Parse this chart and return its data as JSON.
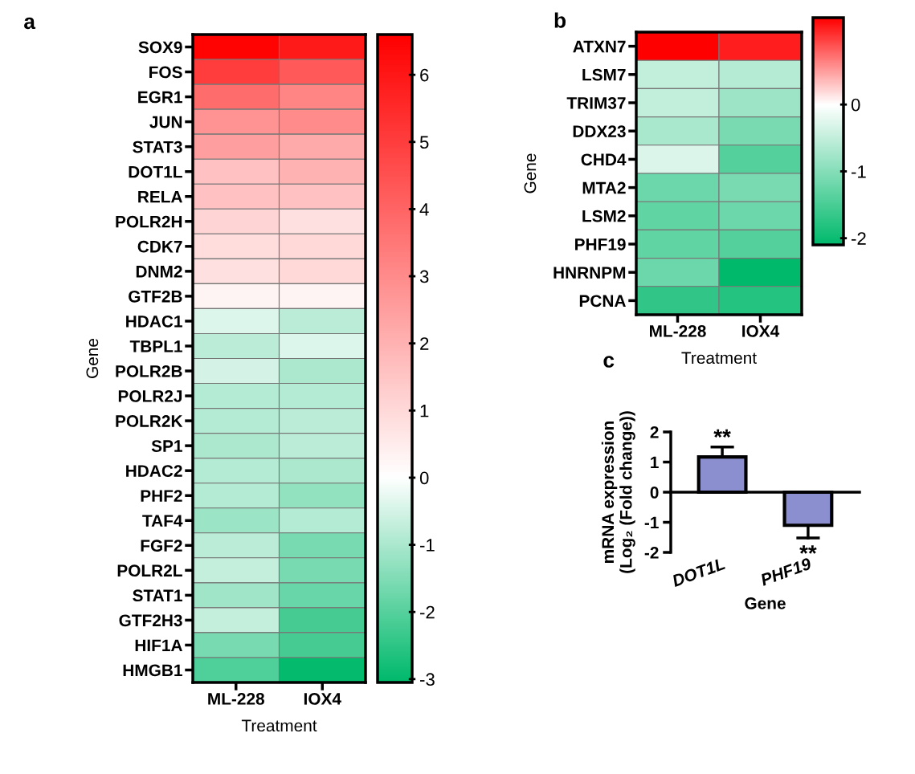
{
  "chart_data": [
    {
      "type": "heatmap",
      "title": "a",
      "xlabel": "Treatment",
      "ylabel": "Gene",
      "categories": [
        "ML-228",
        "IOX4"
      ],
      "y_categories": [
        "SOX9",
        "FOS",
        "EGR1",
        "JUN",
        "STAT3",
        "DOT1L",
        "RELA",
        "POLR2H",
        "CDK7",
        "DNM2",
        "GTF2B",
        "HDAC1",
        "TBPL1",
        "POLR2B",
        "POLR2J",
        "POLR2K",
        "SP1",
        "HDAC2",
        "PHF2",
        "TAF4",
        "FGF2",
        "POLR2L",
        "STAT1",
        "GTF2H3",
        "HIF1A",
        "HMGB1"
      ],
      "cells": [
        [
          6.5,
          5.9
        ],
        [
          5.0,
          4.3
        ],
        [
          3.8,
          3.2
        ],
        [
          2.8,
          3.0
        ],
        [
          2.5,
          2.2
        ],
        [
          1.6,
          2.0
        ],
        [
          1.6,
          1.6
        ],
        [
          1.1,
          0.8
        ],
        [
          0.9,
          1.0
        ],
        [
          0.8,
          1.0
        ],
        [
          0.3,
          0.3
        ],
        [
          -0.4,
          -0.8
        ],
        [
          -0.8,
          -0.4
        ],
        [
          -0.5,
          -1.0
        ],
        [
          -0.9,
          -0.9
        ],
        [
          -0.9,
          -0.8
        ],
        [
          -1.0,
          -0.8
        ],
        [
          -0.9,
          -1.0
        ],
        [
          -0.9,
          -1.3
        ],
        [
          -1.2,
          -0.9
        ],
        [
          -0.8,
          -1.6
        ],
        [
          -0.7,
          -1.6
        ],
        [
          -1.1,
          -1.8
        ],
        [
          -0.7,
          -2.2
        ],
        [
          -1.6,
          -2.2
        ],
        [
          -2.1,
          -3.0
        ]
      ],
      "clim": [
        -3.05,
        6.6
      ],
      "cticks": [
        -3,
        -2,
        -1,
        0,
        1,
        2,
        3,
        4,
        5,
        6
      ]
    },
    {
      "type": "heatmap",
      "title": "b",
      "xlabel": "Treatment",
      "ylabel": "Gene",
      "categories": [
        "ML-228",
        "IOX4"
      ],
      "y_categories": [
        "ATXN7",
        "LSM7",
        "TRIM37",
        "DDX23",
        "CHD4",
        "MTA2",
        "LSM2",
        "PHF19",
        "HNRNPM",
        "PCNA"
      ],
      "cells": [
        [
          1.3,
          1.15
        ],
        [
          -0.5,
          -0.6
        ],
        [
          -0.5,
          -0.8
        ],
        [
          -0.7,
          -1.1
        ],
        [
          -0.3,
          -1.4
        ],
        [
          -1.2,
          -1.1
        ],
        [
          -1.3,
          -1.2
        ],
        [
          -1.3,
          -1.4
        ],
        [
          -1.2,
          -2.1
        ],
        [
          -1.7,
          -1.8
        ]
      ],
      "clim": [
        -2.1,
        1.3
      ],
      "cticks": [
        -2,
        -1,
        0
      ]
    },
    {
      "type": "bar",
      "title": "c",
      "xlabel": "Gene",
      "ylabel": "mRNA expression\n(Log₂ (Fold change))",
      "categories": [
        "DOT1L",
        "PHF19"
      ],
      "values": [
        1.17,
        -1.1
      ],
      "errors": [
        [
          1.17,
          1.5
        ],
        [
          -1.52,
          -1.1
        ]
      ],
      "color": "#8b8fcf",
      "ylim": [
        -2,
        2
      ],
      "yticks": [
        -2,
        -1,
        0,
        1,
        2
      ],
      "annotations": [
        {
          "text": "**",
          "x": "DOT1L",
          "y": 1.5
        },
        {
          "text": "**",
          "x": "PHF19",
          "y": -1.52
        }
      ]
    }
  ]
}
